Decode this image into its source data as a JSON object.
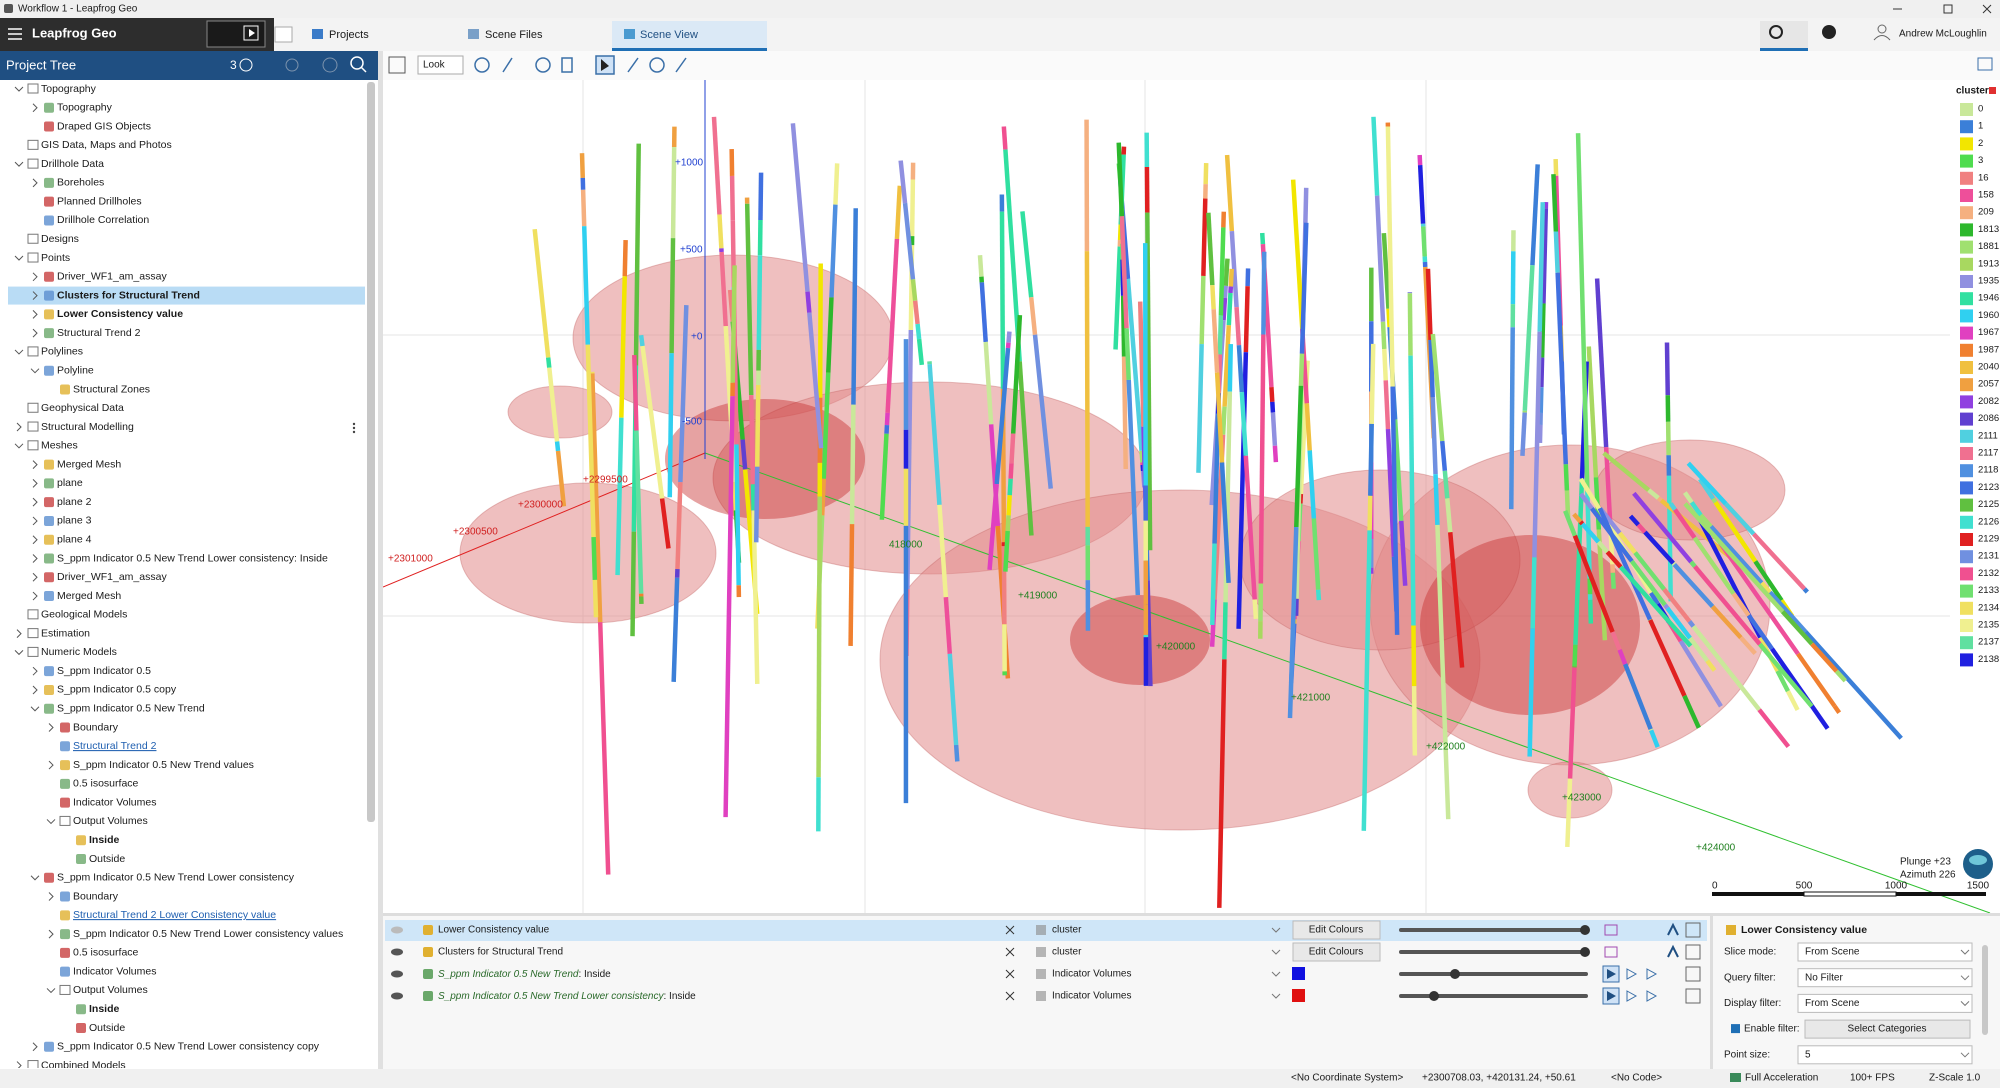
{
  "window": {
    "title": "Workflow 1 - Leapfrog Geo"
  },
  "app": {
    "name": "Leapfrog Geo",
    "tabs": [
      "Projects",
      "Scene Files",
      "Scene View"
    ],
    "user": "Andrew McLoughlin"
  },
  "project_tree": {
    "title": "Project Tree",
    "badge": "3",
    "items": [
      {
        "label": "Topography",
        "children": [
          {
            "label": "Topography",
            "expanded": false
          },
          {
            "label": "Draped GIS Objects"
          }
        ]
      },
      {
        "label": "GIS Data, Maps and Photos"
      },
      {
        "label": "Drillhole Data",
        "children": [
          {
            "label": "Boreholes",
            "expanded": false
          },
          {
            "label": "Planned Drillholes"
          },
          {
            "label": "Drillhole Correlation"
          }
        ]
      },
      {
        "label": "Designs"
      },
      {
        "label": "Points",
        "children": [
          {
            "label": "Driver_WF1_am_assay",
            "expanded": false
          },
          {
            "label": "Clusters for Structural Trend",
            "expanded": false,
            "style": "bold",
            "selected": true
          },
          {
            "label": "Lower Consistency value",
            "expanded": false,
            "style": "bold"
          },
          {
            "label": "Structural Trend 2",
            "expanded": false
          }
        ]
      },
      {
        "label": "Polylines",
        "children": [
          {
            "label": "Polyline",
            "children": [
              {
                "label": "Structural Zones"
              }
            ]
          }
        ]
      },
      {
        "label": "Geophysical Data"
      },
      {
        "label": "Structural Modelling",
        "expanded": false
      },
      {
        "label": "Meshes",
        "children": [
          {
            "label": "Merged Mesh",
            "expanded": false
          },
          {
            "label": "plane",
            "expanded": false
          },
          {
            "label": "plane 2",
            "expanded": false
          },
          {
            "label": "plane 3",
            "expanded": false
          },
          {
            "label": "plane 4",
            "expanded": false
          },
          {
            "label": "S_ppm Indicator 0.5 New Trend Lower consistency: Inside",
            "expanded": false
          },
          {
            "label": "Driver_WF1_am_assay",
            "expanded": false
          },
          {
            "label": "Merged Mesh",
            "expanded": false
          }
        ]
      },
      {
        "label": "Geological Models"
      },
      {
        "label": "Estimation",
        "expanded": false
      },
      {
        "label": "Numeric Models",
        "children": [
          {
            "label": "S_ppm Indicator 0.5",
            "expanded": false
          },
          {
            "label": "S_ppm Indicator 0.5 copy",
            "expanded": false
          },
          {
            "label": "S_ppm Indicator 0.5 New Trend",
            "children": [
              {
                "label": "Boundary",
                "expanded": false
              },
              {
                "label": "Structural Trend 2",
                "style": "link"
              },
              {
                "label": "S_ppm Indicator 0.5 New Trend values",
                "expanded": false
              },
              {
                "label": "0.5 isosurface"
              },
              {
                "label": "Indicator Volumes"
              },
              {
                "label": "Output Volumes",
                "children": [
                  {
                    "label": "Inside",
                    "style": "bold"
                  },
                  {
                    "label": "Outside"
                  }
                ]
              }
            ]
          },
          {
            "label": "S_ppm Indicator 0.5 New Trend Lower consistency",
            "children": [
              {
                "label": "Boundary",
                "expanded": false
              },
              {
                "label": "Structural Trend 2 Lower Consistency value",
                "style": "link"
              },
              {
                "label": "S_ppm Indicator 0.5 New Trend Lower consistency values",
                "expanded": false
              },
              {
                "label": "0.5 isosurface"
              },
              {
                "label": "Indicator Volumes"
              },
              {
                "label": "Output Volumes",
                "children": [
                  {
                    "label": "Inside",
                    "style": "bold"
                  },
                  {
                    "label": "Outside"
                  }
                ]
              }
            ]
          },
          {
            "label": "S_ppm Indicator 0.5 New Trend Lower consistency copy",
            "expanded": false
          }
        ]
      },
      {
        "label": "Combined Models",
        "expanded": false
      }
    ]
  },
  "scene": {
    "toolbar_view": "Look",
    "elevation_labels": [
      "+1000",
      "+500",
      "+0",
      "-500"
    ],
    "northing_labels": [
      "+2301000",
      "+2300500",
      "+2300000",
      "+2299500"
    ],
    "easting_labels": [
      "418000",
      "+419000",
      "+420000",
      "+421000",
      "+422000",
      "+423000",
      "+424000"
    ],
    "orientation": [
      "Plunge +23",
      "Azimuth 226"
    ],
    "scale_labels": [
      "0",
      "500",
      "1000",
      "1500"
    ],
    "legend": {
      "title": "cluster",
      "items": [
        {
          "label": "0",
          "color": "#c9e89a"
        },
        {
          "label": "1",
          "color": "#3b7fd8"
        },
        {
          "label": "2",
          "color": "#f2e600"
        },
        {
          "label": "3",
          "color": "#4fdc4f"
        },
        {
          "label": "16",
          "color": "#f08080"
        },
        {
          "label": "158",
          "color": "#ee4f9a"
        },
        {
          "label": "209",
          "color": "#f5b080"
        },
        {
          "label": "1813",
          "color": "#2db82d"
        },
        {
          "label": "1881",
          "color": "#a0e070"
        },
        {
          "label": "1913",
          "color": "#a8d860"
        },
        {
          "label": "1935",
          "color": "#9090e0"
        },
        {
          "label": "1946",
          "color": "#30e0a0"
        },
        {
          "label": "1960",
          "color": "#30d0f0"
        },
        {
          "label": "1967",
          "color": "#e040c0"
        },
        {
          "label": "1987",
          "color": "#f08030"
        },
        {
          "label": "2040",
          "color": "#f0c040"
        },
        {
          "label": "2057",
          "color": "#f0a040"
        },
        {
          "label": "2082",
          "color": "#9040e0"
        },
        {
          "label": "2086",
          "color": "#6040d0"
        },
        {
          "label": "2111",
          "color": "#50d0e0"
        },
        {
          "label": "2117",
          "color": "#f07090"
        },
        {
          "label": "2118",
          "color": "#5090e0"
        },
        {
          "label": "2123",
          "color": "#4070e0"
        },
        {
          "label": "2125",
          "color": "#60c040"
        },
        {
          "label": "2126",
          "color": "#40e0d0"
        },
        {
          "label": "2129",
          "color": "#e02020"
        },
        {
          "label": "2131",
          "color": "#7090e0"
        },
        {
          "label": "2132",
          "color": "#f05090"
        },
        {
          "label": "2133",
          "color": "#70e070"
        },
        {
          "label": "2134",
          "color": "#f0e060"
        },
        {
          "label": "2135",
          "color": "#f0f090"
        },
        {
          "label": "2137",
          "color": "#60e0a0"
        },
        {
          "label": "2138",
          "color": "#2020e0"
        }
      ]
    }
  },
  "shapes_list": [
    {
      "name": "Lower Consistency value",
      "property": "cluster",
      "button": "Edit Colours",
      "highlighted": true
    },
    {
      "name": "Clusters for Structural Trend",
      "property": "cluster",
      "button": "Edit Colours"
    },
    {
      "name_italic": "S_ppm Indicator 0.5 New Trend",
      "name_rest": ": Inside",
      "property": "Indicator Volumes",
      "color": "#1010e0"
    },
    {
      "name_italic": "S_ppm Indicator 0.5 New Trend Lower consistency",
      "name_rest": ": Inside",
      "property": "Indicator Volumes",
      "color": "#e01010"
    }
  ],
  "properties": {
    "title": "Lower Consistency value",
    "fields": [
      {
        "label": "Slice mode:",
        "value": "From Scene"
      },
      {
        "label": "Query filter:",
        "value": "No Filter"
      },
      {
        "label": "Display filter:",
        "value": "From Scene"
      },
      {
        "label": "Enable filter:",
        "value": "Select Categories"
      },
      {
        "label": "Point size:",
        "value": "5"
      }
    ]
  },
  "status_bar": [
    "<No Coordinate System>",
    "+2300708.03, +420131.24, +50.61",
    "<No Code>",
    "Full Acceleration",
    "100+ FPS",
    "Z-Scale 1.0"
  ]
}
